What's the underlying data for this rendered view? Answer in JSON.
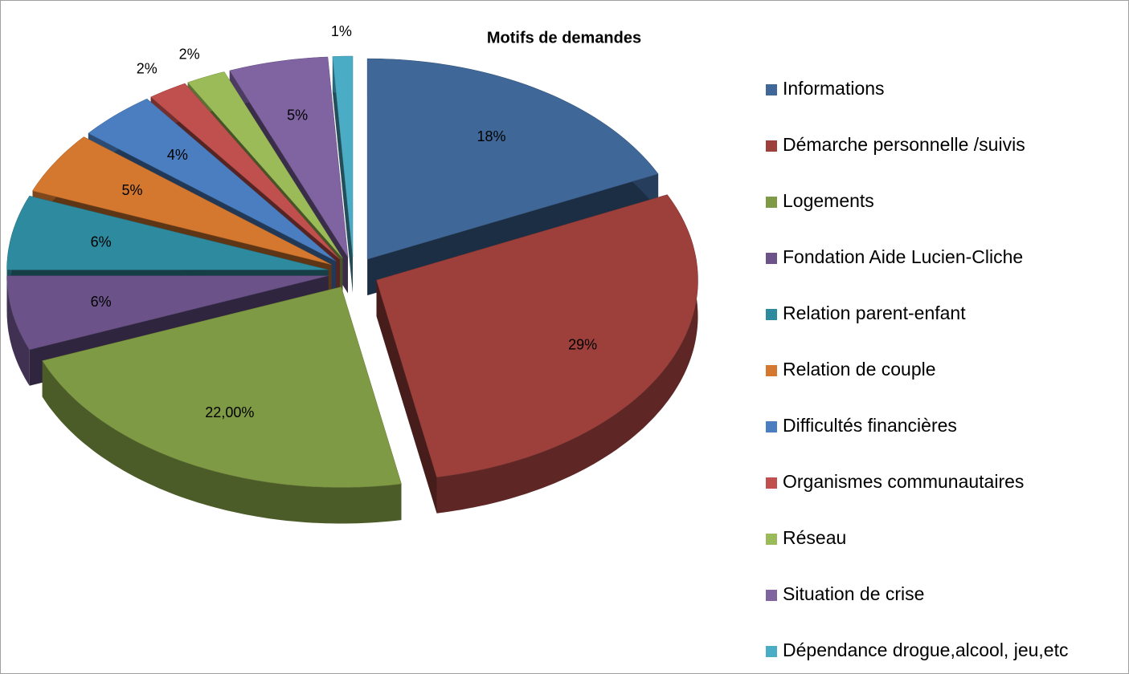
{
  "chart_data": {
    "type": "pie",
    "title": "Motifs de demandes",
    "categories": [
      "Informations",
      "Démarche personnelle /suivis",
      "Logements",
      "Fondation Aide Lucien-Cliche",
      "Relation parent-enfant",
      "Relation de couple",
      "Difficultés financières",
      "Organismes communautaires",
      "Réseau",
      "Situation de crise",
      "Dépendance drogue,alcool, jeu,etc"
    ],
    "values": [
      18,
      29,
      22,
      6,
      6,
      5,
      4,
      2,
      2,
      5,
      1
    ],
    "value_labels": [
      "18%",
      "29%",
      "22,00%",
      "6%",
      "6%",
      "5%",
      "4%",
      "2%",
      "2%",
      "5%",
      "1%"
    ],
    "colors": [
      "#3f6797",
      "#9d403c",
      "#7f9a44",
      "#6b5289",
      "#2e8a9e",
      "#d4782f",
      "#4a7ec0",
      "#c0504d",
      "#9bbb59",
      "#8064a2",
      "#4bacc6"
    ],
    "legend": "right"
  }
}
